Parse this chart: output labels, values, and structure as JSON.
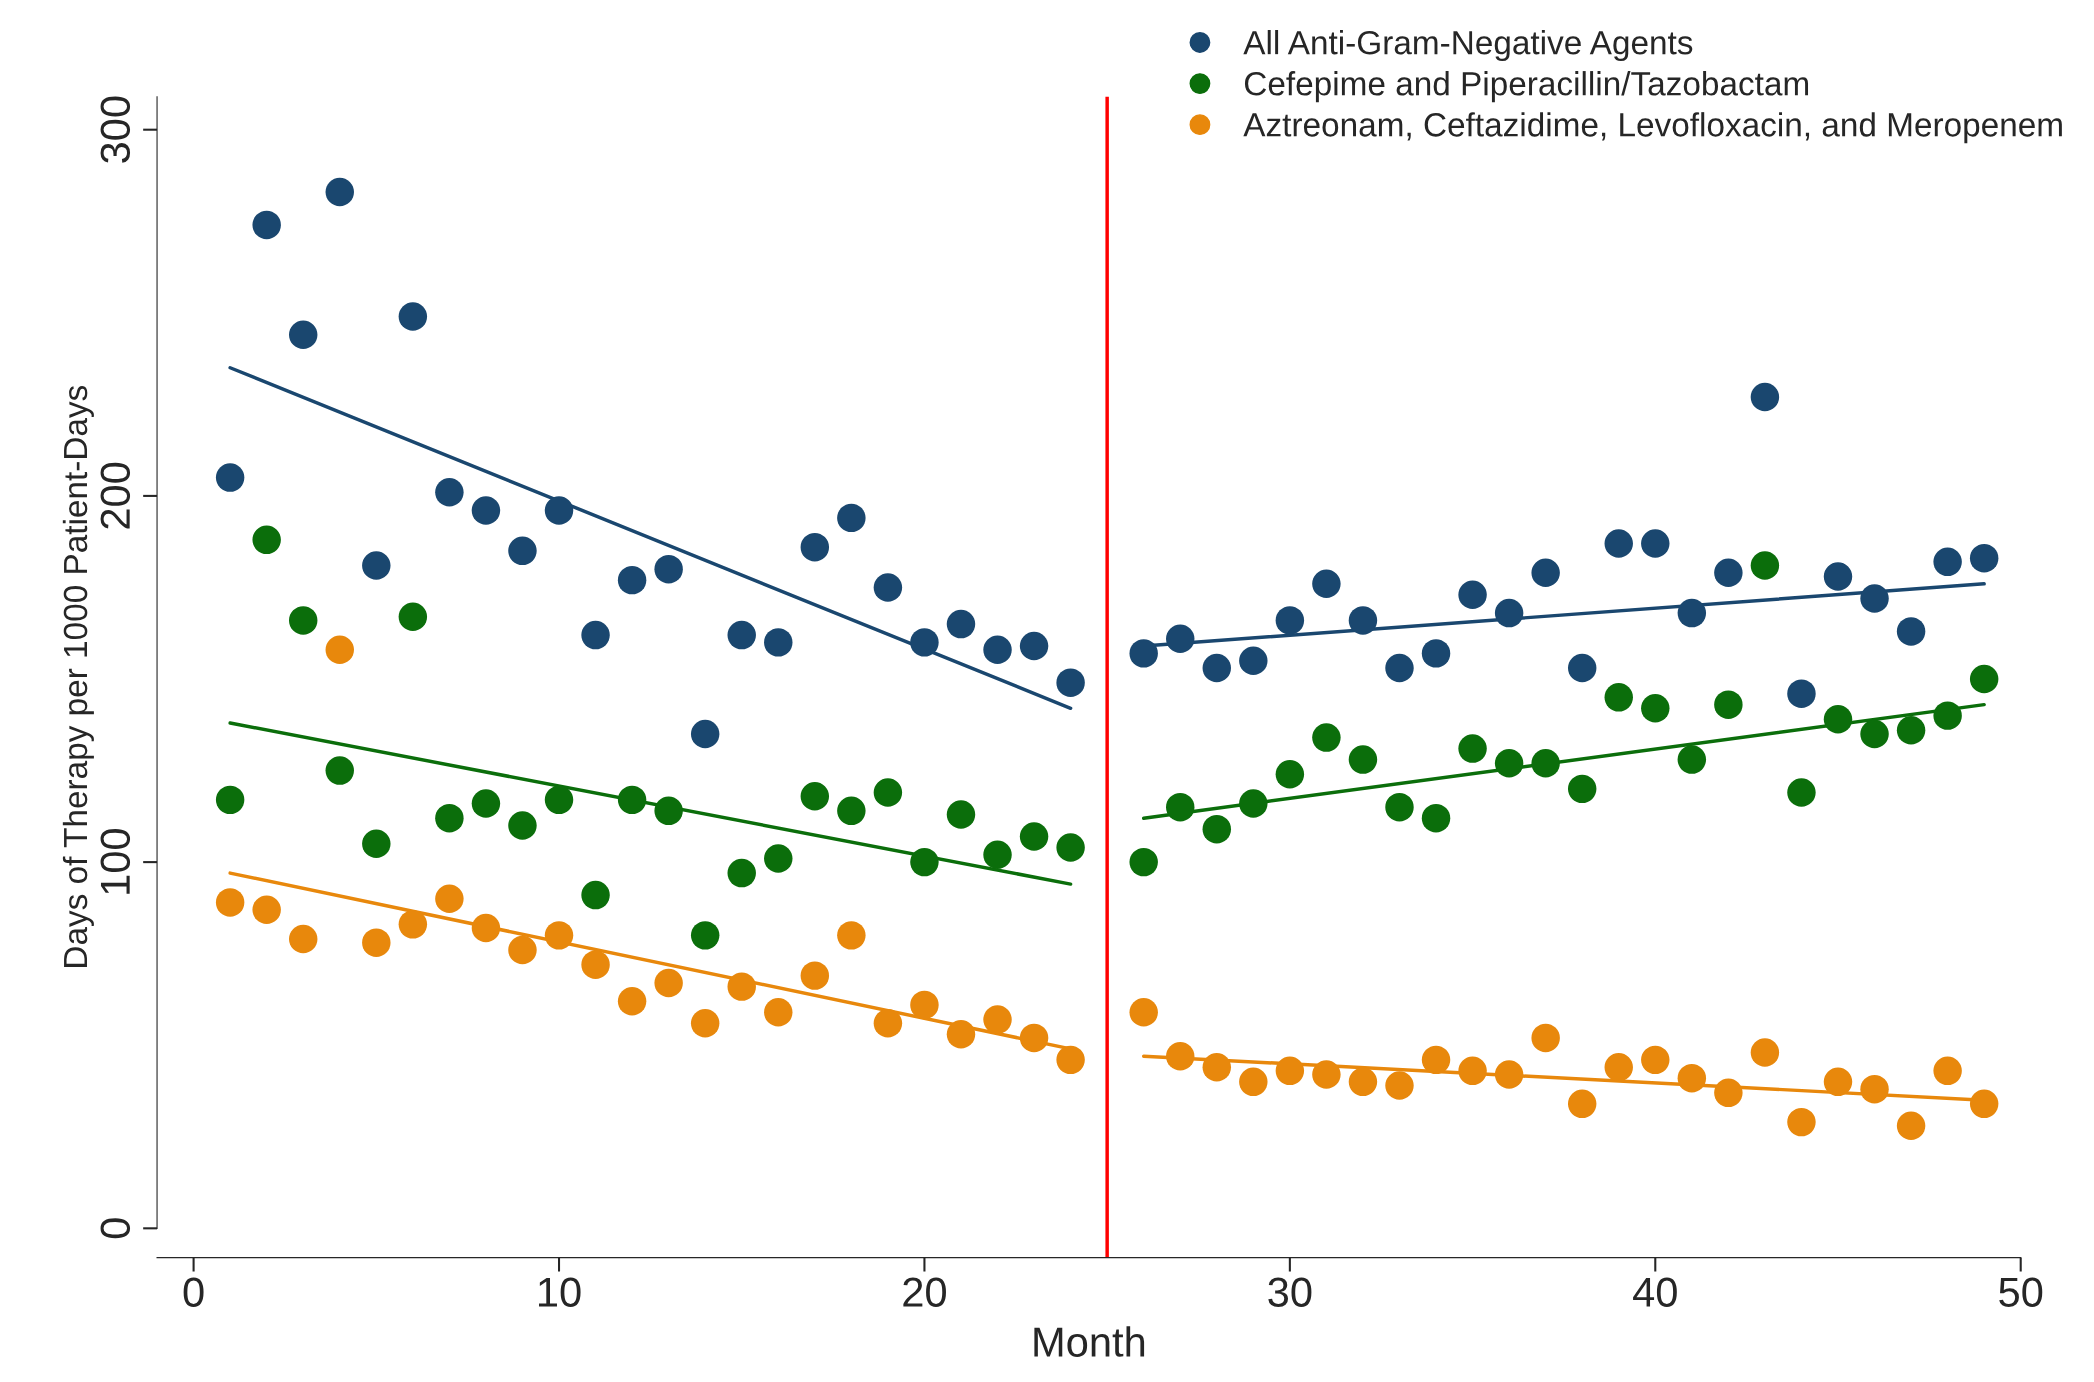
{
  "chart_data": {
    "type": "scatter",
    "xlabel": "Month",
    "ylabel": "Days of Therapy per 1000 Patient-Days",
    "x": [
      1,
      2,
      3,
      4,
      5,
      6,
      7,
      8,
      9,
      10,
      11,
      12,
      13,
      14,
      15,
      16,
      17,
      18,
      19,
      20,
      21,
      22,
      23,
      24,
      26,
      27,
      28,
      29,
      30,
      31,
      32,
      33,
      34,
      35,
      36,
      37,
      38,
      39,
      40,
      41,
      42,
      43,
      44,
      45,
      46,
      47,
      48,
      49
    ],
    "series": [
      {
        "name": "All Anti-Gram-Negative Agents",
        "color": "#1a476f",
        "values": [
          205,
          274,
          244,
          283,
          181,
          249,
          201,
          196,
          185,
          196,
          162,
          177,
          180,
          135,
          162,
          160,
          186,
          194,
          175,
          160,
          165,
          158,
          159,
          149,
          157,
          161,
          153,
          155,
          166,
          176,
          166,
          153,
          157,
          173,
          168,
          179,
          153,
          187,
          187,
          168,
          179,
          227,
          146,
          178,
          172,
          163,
          182,
          183
        ]
      },
      {
        "name": "Cefepime and Piperacillin/Tazobactam",
        "color": "#0b6e0b",
        "values": [
          117,
          188,
          166,
          125,
          105,
          167,
          112,
          116,
          110,
          117,
          91,
          117,
          114,
          80,
          97,
          101,
          118,
          114,
          119,
          100,
          113,
          102,
          107,
          104,
          100,
          115,
          109,
          116,
          124,
          134,
          128,
          115,
          112,
          131,
          127,
          127,
          120,
          145,
          142,
          128,
          143,
          181,
          119,
          139,
          135,
          136,
          140,
          150
        ]
      },
      {
        "name": "Aztreonam, Ceftazidime, Levofloxacin, and Meropenem",
        "color": "#e8880c",
        "values": [
          89,
          87,
          79,
          158,
          78,
          83,
          90,
          82,
          76,
          80,
          72,
          62,
          67,
          56,
          66,
          59,
          69,
          80,
          56,
          61,
          53,
          57,
          52,
          46,
          59,
          47,
          44,
          40,
          43,
          42,
          40,
          39,
          46,
          43,
          42,
          52,
          34,
          44,
          46,
          41,
          37,
          48,
          29,
          40,
          38,
          28,
          43,
          34
        ]
      },
      {
        "type": "line",
        "marker": "none",
        "color": "#1a476f",
        "x": [
          1,
          24
        ],
        "values": [
          235,
          142
        ]
      },
      {
        "type": "line",
        "marker": "none",
        "color": "#1a476f",
        "x": [
          26,
          49
        ],
        "values": [
          159,
          176
        ]
      },
      {
        "type": "line",
        "marker": "none",
        "color": "#0b6e0b",
        "x": [
          1,
          24
        ],
        "values": [
          138,
          94
        ]
      },
      {
        "type": "line",
        "marker": "none",
        "color": "#0b6e0b",
        "x": [
          26,
          49
        ],
        "values": [
          112,
          143
        ]
      },
      {
        "type": "line",
        "marker": "none",
        "color": "#e8880c",
        "x": [
          1,
          24
        ],
        "values": [
          97,
          49
        ]
      },
      {
        "type": "line",
        "marker": "none",
        "color": "#e8880c",
        "x": [
          26,
          49
        ],
        "values": [
          47,
          35
        ]
      }
    ],
    "ref_lines": [
      {
        "axis": "x",
        "value": 25,
        "color": "#ff0000"
      }
    ],
    "xlim": [
      -1,
      50
    ],
    "xticks": [
      0,
      10,
      20,
      30,
      40,
      50
    ],
    "ylim": [
      -8,
      309
    ],
    "yticks": [
      0,
      100,
      200,
      300
    ],
    "marker": "circle",
    "grid": false,
    "legend": "top right"
  }
}
